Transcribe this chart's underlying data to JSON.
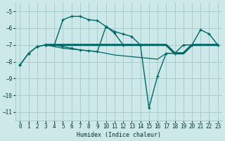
{
  "title": "",
  "xlabel": "Humidex (Indice chaleur)",
  "bg_color": "#cce8e8",
  "grid_color": "#aacccc",
  "line_color": "#006666",
  "xlim": [
    -0.5,
    23.5
  ],
  "ylim": [
    -11.5,
    -4.5
  ],
  "xticks": [
    0,
    1,
    2,
    3,
    4,
    5,
    6,
    7,
    8,
    9,
    10,
    11,
    12,
    13,
    14,
    15,
    16,
    17,
    18,
    19,
    20,
    21,
    22,
    23
  ],
  "yticks": [
    -11,
    -10,
    -9,
    -8,
    -7,
    -6,
    -5
  ],
  "series1_x": [
    0,
    1,
    2,
    3,
    4,
    5,
    6,
    7,
    8,
    9,
    10,
    11,
    12
  ],
  "series1_y": [
    -8.2,
    -7.5,
    -7.1,
    -7.0,
    -7.0,
    -5.5,
    -5.3,
    -5.3,
    -5.5,
    -5.55,
    -5.9,
    -6.3,
    -7.0
  ],
  "series2_x": [
    0,
    1,
    2,
    3,
    4,
    5,
    6,
    7,
    8,
    9,
    10,
    11,
    12,
    13,
    14,
    15,
    16,
    17,
    18,
    19,
    20,
    21,
    22,
    23
  ],
  "series2_y": [
    -8.2,
    -7.5,
    -7.1,
    -7.0,
    -7.0,
    -7.1,
    -7.2,
    -7.3,
    -7.35,
    -7.4,
    -5.9,
    -6.2,
    -6.35,
    -6.5,
    -7.0,
    -10.75,
    -8.85,
    -7.5,
    -7.5,
    -7.0,
    -7.0,
    -6.1,
    -6.35,
    -7.0
  ],
  "series3_x": [
    3,
    4,
    5,
    6,
    7,
    8,
    9,
    10,
    11,
    12,
    13,
    14,
    15,
    16,
    17,
    18,
    19,
    20,
    21,
    22,
    23
  ],
  "series3_y": [
    -7.0,
    -7.0,
    -7.0,
    -7.0,
    -7.0,
    -7.0,
    -7.0,
    -7.0,
    -7.0,
    -7.0,
    -7.0,
    -7.0,
    -7.0,
    -7.0,
    -7.0,
    -7.5,
    -7.5,
    -7.0,
    -7.0,
    -7.0,
    -7.0
  ],
  "series4_x": [
    3,
    4,
    5,
    6,
    7,
    8,
    9,
    10,
    11,
    12,
    13,
    14,
    15,
    16,
    17,
    18,
    19,
    20,
    21,
    22,
    23
  ],
  "series4_y": [
    -7.0,
    -7.1,
    -7.2,
    -7.25,
    -7.3,
    -7.35,
    -7.4,
    -7.5,
    -7.6,
    -7.65,
    -7.7,
    -7.75,
    -7.8,
    -7.85,
    -7.5,
    -7.5,
    -7.5,
    -7.0,
    -7.0,
    -7.0,
    -7.0
  ]
}
